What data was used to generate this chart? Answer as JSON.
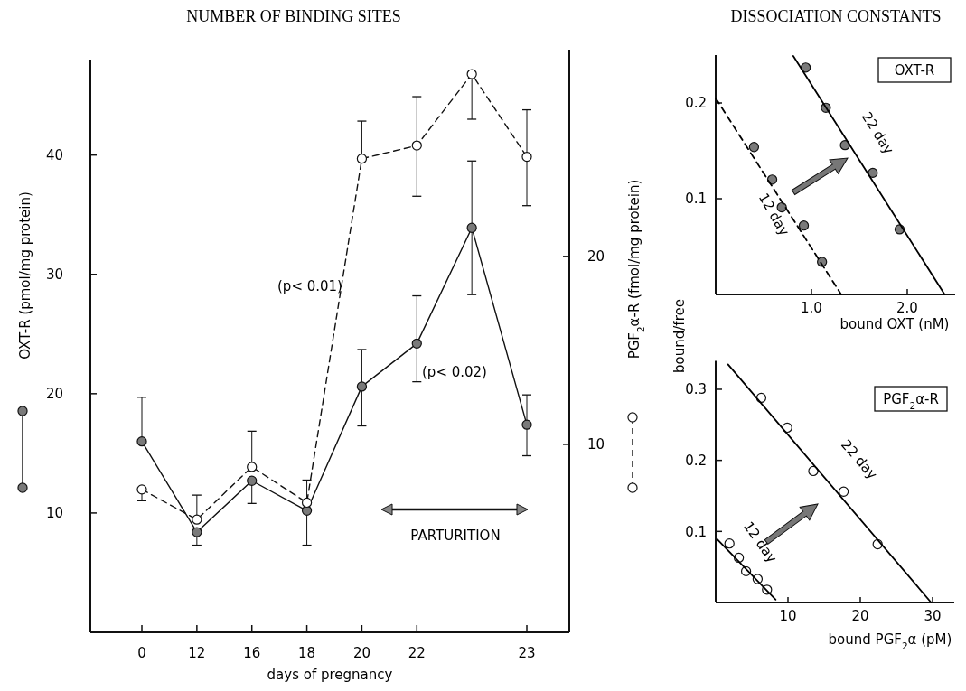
{
  "chart_data": [
    {
      "type": "line",
      "title": "NUMBER OF BINDING SITES",
      "xlabel": "days of pregnancy",
      "ylabel": "OXT-R (pmol/mg protein)",
      "y2label": "PGF$_{2}$α-R (fmol/mg protein)",
      "categories": [
        "0",
        "12",
        "16",
        "18",
        "20",
        "22",
        null,
        "23"
      ],
      "ylim": [
        0,
        48
      ],
      "yticks": [
        10,
        20,
        30,
        40
      ],
      "y2lim": [
        0,
        31
      ],
      "y2ticks": [
        10,
        20
      ],
      "marker": "circle",
      "series": [
        {
          "color": "#7a7a7a",
          "line_style": "solid",
          "values": [
            16.0,
            8.4,
            12.7,
            10.2,
            20.6,
            24.2,
            33.9,
            17.4
          ],
          "errors": [
            [
              16.0,
              19.7
            ],
            [
              7.3,
              8.4
            ],
            [
              10.8,
              12.7
            ],
            [
              7.3,
              10.2
            ],
            [
              17.3,
              23.7
            ],
            [
              21.0,
              28.2
            ],
            [
              28.3,
              39.5
            ],
            [
              14.8,
              19.9
            ]
          ]
        },
        {
          "color": "#ffffff",
          "line_style": "dashed",
          "axis": "y2",
          "values": [
            7.6,
            6.0,
            8.8,
            6.9,
            25.2,
            25.9,
            29.7,
            25.3
          ],
          "errors": [
            [
              7.0,
              7.6
            ],
            [
              6.0,
              7.3
            ],
            [
              8.8,
              10.7
            ],
            [
              6.9,
              8.1
            ],
            [
              25.2,
              27.2
            ],
            [
              23.2,
              28.5
            ],
            [
              27.3,
              29.7
            ],
            [
              22.7,
              27.8
            ]
          ]
        }
      ],
      "annotations": [
        "(p< 0.01)",
        "(p< 0.02)",
        "PARTURITION"
      ]
    },
    {
      "type": "scatter",
      "title": "DISSOCIATION CONSTANTS",
      "xlabel": "bound OXT (nM)",
      "ylabel": "bound/free",
      "xlim": [
        0,
        2.5
      ],
      "xticks": [
        {
          "value": 1,
          "label": "1.0"
        },
        {
          "value": 2,
          "label": "2.0"
        }
      ],
      "ylim": [
        0,
        0.25
      ],
      "yticks": [
        0.1,
        0.2
      ],
      "marker": "circle",
      "series": [
        {
          "type": "scatter",
          "color": "#7a7a7a",
          "x": [
            0.94,
            1.15,
            1.35,
            1.64,
            1.92
          ],
          "values": [
            0.237,
            0.195,
            0.156,
            0.127,
            0.068
          ]
        },
        {
          "type": "line",
          "name": "22 day",
          "color": "#000000",
          "line_style": "solid",
          "marker": "none",
          "x": [
            0.81,
            2.39
          ],
          "values": [
            0.249,
            0
          ]
        },
        {
          "type": "scatter",
          "color": "#7a7a7a",
          "x": [
            0.4,
            0.59,
            0.69,
            0.92,
            1.11
          ],
          "values": [
            0.154,
            0.12,
            0.091,
            0.072,
            0.034
          ]
        },
        {
          "type": "line",
          "name": "12 day",
          "color": "#000000",
          "line_style": "dashed",
          "marker": "none",
          "x": [
            0,
            1.31
          ],
          "values": [
            0.205,
            0
          ]
        }
      ],
      "annotations": [
        "OXT-R"
      ]
    },
    {
      "type": "scatter",
      "xlabel": "bound PGF$_{2}$α (pM)",
      "xlim": [
        0,
        33
      ],
      "xticks": [
        10,
        20,
        30
      ],
      "ylim": [
        0,
        0.34
      ],
      "yticks": [
        0.1,
        0.2,
        0.3
      ],
      "marker": "circle",
      "series": [
        {
          "type": "scatter",
          "color": "#ffffff",
          "x": [
            6.3,
            9.9,
            13.5,
            17.7,
            22.4
          ],
          "values": [
            0.288,
            0.246,
            0.185,
            0.156,
            0.082
          ]
        },
        {
          "type": "line",
          "name": "22 day",
          "color": "#000000",
          "line_style": "solid",
          "marker": "none",
          "x": [
            1.7,
            29.8
          ],
          "values": [
            0.335,
            0
          ]
        },
        {
          "type": "scatter",
          "color": "#ffffff",
          "x": [
            1.9,
            3.2,
            4.2,
            5.8,
            7.1
          ],
          "values": [
            0.083,
            0.063,
            0.044,
            0.033,
            0.018
          ]
        },
        {
          "type": "line",
          "name": "12 day",
          "color": "#000000",
          "line_style": "solid",
          "marker": "none",
          "x": [
            0.2,
            8.3
          ],
          "values": [
            0.089,
            0.004
          ]
        }
      ],
      "annotations": [
        "PGF$_{2}$α-R"
      ]
    }
  ]
}
